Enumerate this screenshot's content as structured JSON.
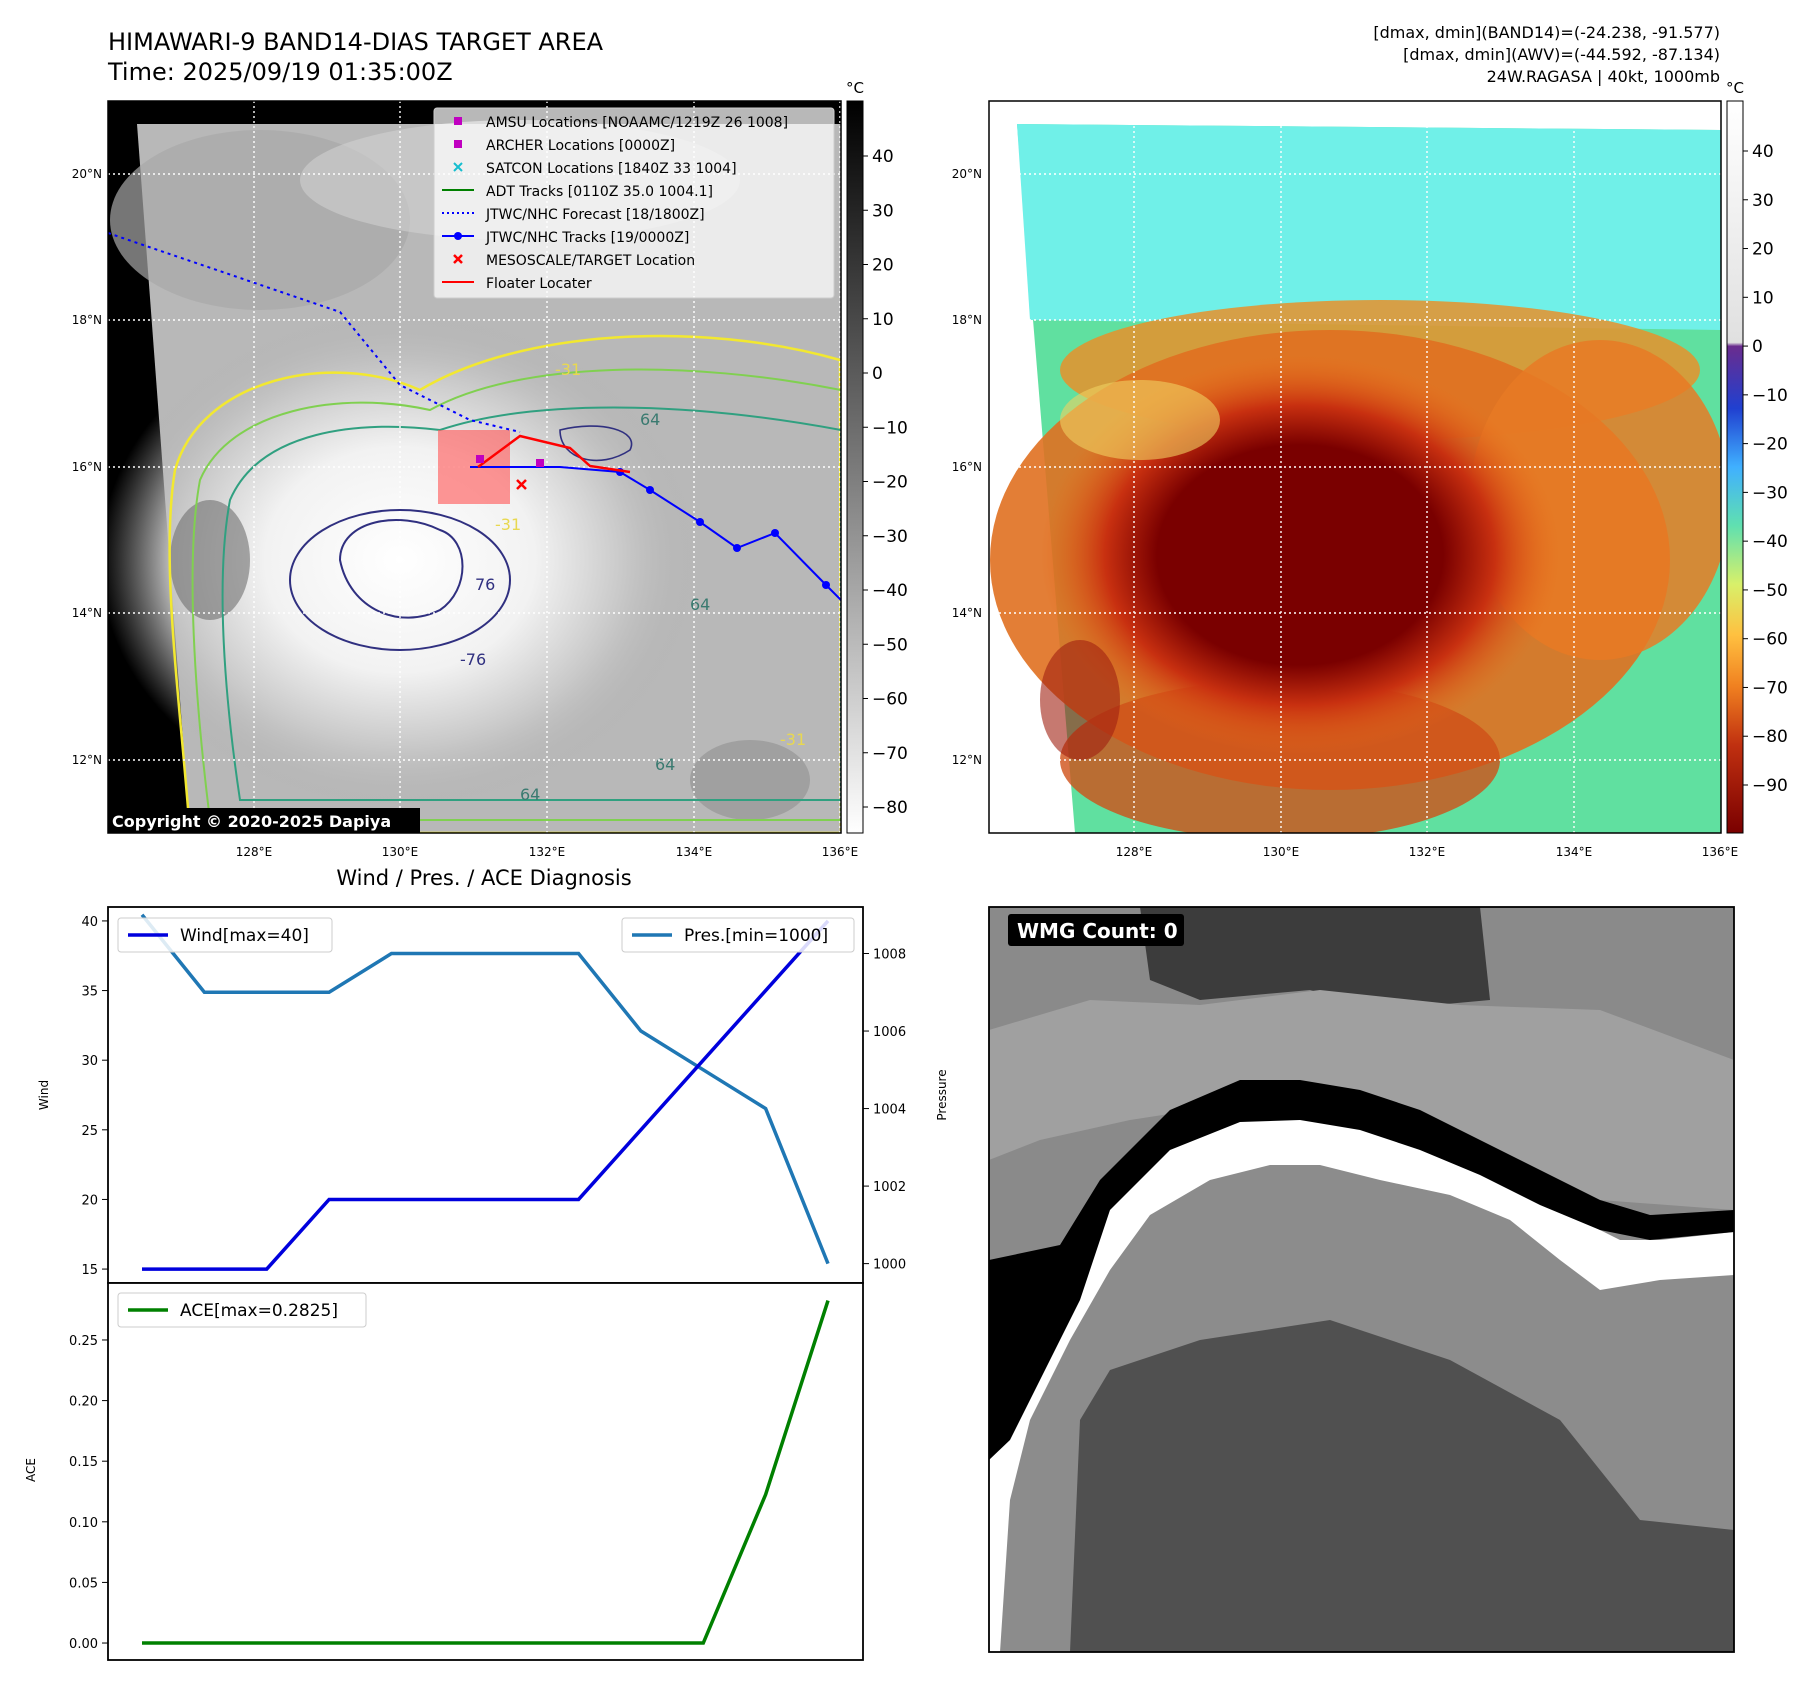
{
  "header": {
    "title_line1": "HIMAWARI-9 BAND14-DIAS TARGET AREA",
    "title_line2": "Time: 2025/09/19 01:35:00Z",
    "info_line1": "[dmax, dmin](BAND14)=(-24.238, -91.577)",
    "info_line2": "[dmax, dmin](AWV)=(-44.592, -87.134)",
    "info_line3": "24W.RAGASA | 40kt, 1000mb"
  },
  "map_axes": {
    "lon_ticks": [
      "128°E",
      "130°E",
      "132°E",
      "134°E",
      "136°E"
    ],
    "lat_ticks": [
      "20°N",
      "18°N",
      "16°N",
      "14°N",
      "12°N"
    ]
  },
  "ir_panel": {
    "colorbar_unit": "°C",
    "colorbar_ticks": [
      "40",
      "30",
      "20",
      "10",
      "0",
      "−10",
      "−20",
      "−30",
      "−40",
      "−50",
      "−60",
      "−70",
      "−80"
    ],
    "legend": [
      {
        "label": "AMSU Locations [NOAAMC/1219Z 26 1008]",
        "marker": "square",
        "color": "#c000c0"
      },
      {
        "label": "ARCHER Locations [0000Z]",
        "marker": "square",
        "color": "#c000c0"
      },
      {
        "label": "SATCON Locations [1840Z 33 1004]",
        "marker": "x",
        "color": "#17becf"
      },
      {
        "label": "ADT Tracks [0110Z 35.0 1004.1]",
        "marker": "line",
        "color": "#008000"
      },
      {
        "label": "JTWC/NHC Forecast [18/1800Z]",
        "marker": "dotted",
        "color": "#0000ff"
      },
      {
        "label": "JTWC/NHC Tracks [19/0000Z]",
        "marker": "line-dot",
        "color": "#0000ff"
      },
      {
        "label": "MESOSCALE/TARGET Location",
        "marker": "x",
        "color": "#ff0000"
      },
      {
        "label": "Floater Locater",
        "marker": "line",
        "color": "#ff0000"
      }
    ],
    "contour_labels": [
      "-31",
      "64",
      "-31",
      "64",
      "64",
      "76",
      "-76",
      "-31",
      "64"
    ],
    "copyright": "Copyright © 2020-2025 Dapiya"
  },
  "awv_panel": {
    "colorbar_unit": "°C",
    "colorbar_ticks": [
      "40",
      "30",
      "20",
      "10",
      "0",
      "−10",
      "−20",
      "−30",
      "−40",
      "−50",
      "−60",
      "−70",
      "−80",
      "−90"
    ]
  },
  "wmg_panel": {
    "label": "WMG Count: 0"
  },
  "chart_data": [
    {
      "type": "line",
      "title": "Wind / Pres. / ACE Diagnosis",
      "ylabel": "Wind",
      "y2label": "Pressure",
      "ylim": [
        14,
        41
      ],
      "y2lim": [
        999.5,
        1009.2
      ],
      "yticks": [
        15,
        20,
        25,
        30,
        35,
        40
      ],
      "y2ticks": [
        1000,
        1002,
        1004,
        1006,
        1008
      ],
      "series": [
        {
          "name": "Wind[max=40]",
          "axis": "left",
          "color": "#0000dd",
          "values": [
            15,
            15,
            15,
            20,
            20,
            20,
            20,
            20,
            25,
            30,
            35,
            40
          ]
        },
        {
          "name": "Pres.[min=1000]",
          "axis": "right",
          "color": "#1f77b4",
          "values": [
            1009,
            1007,
            1007,
            1007,
            1008,
            1008,
            1008,
            1008,
            1006,
            1005,
            1004,
            1000
          ]
        }
      ]
    },
    {
      "type": "line",
      "ylabel": "ACE",
      "ylim": [
        -0.014,
        0.297
      ],
      "yticks": [
        "0.00",
        "0.05",
        "0.10",
        "0.15",
        "0.20",
        "0.25"
      ],
      "series": [
        {
          "name": "ACE[max=0.2825]",
          "color": "#008000",
          "values": [
            0,
            0,
            0,
            0,
            0,
            0,
            0,
            0,
            0,
            0,
            0.1225,
            0.2825
          ]
        }
      ]
    }
  ]
}
